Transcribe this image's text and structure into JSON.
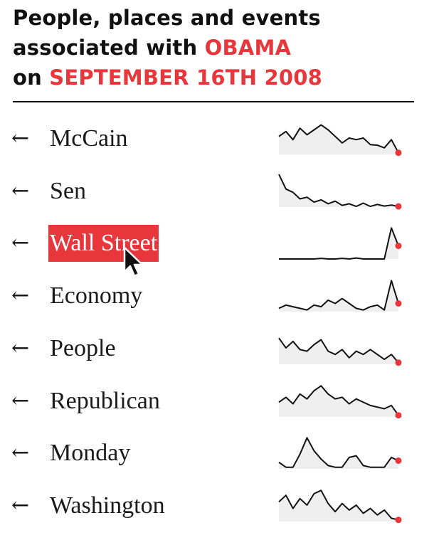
{
  "header": {
    "line1": "People, places and events",
    "line2_prefix": "associated with ",
    "subject": "OBAMA",
    "line3_prefix": "on ",
    "date": "SEPTEMBER 16TH 2008"
  },
  "arrow_glyph": "←",
  "colors": {
    "accent": "#e8373c",
    "text": "#111111",
    "sparkline_fill": "#efefef",
    "sparkline_line": "#111111"
  },
  "selected_term": "Wall Street",
  "cursor_icon": "arrow-pointer-icon",
  "chart_data": {
    "type": "line",
    "subtype": "sparklines",
    "title": "People, places and events associated with OBAMA on SEPTEMBER 16TH 2008",
    "y_scale": "independent per row",
    "last_point_marked": true,
    "series": [
      {
        "name": "McCain",
        "values": [
          0.55,
          0.7,
          0.45,
          0.8,
          0.6,
          0.75,
          0.9,
          0.75,
          0.55,
          0.35,
          0.5,
          0.45,
          0.5,
          0.3,
          0.28,
          0.2,
          0.45,
          0.05
        ]
      },
      {
        "name": "Sen",
        "values": [
          1.0,
          0.55,
          0.45,
          0.25,
          0.3,
          0.15,
          0.22,
          0.1,
          0.18,
          0.05,
          0.1,
          0.02,
          0.12,
          0.02,
          0.08,
          0.03,
          0.06,
          0.02
        ]
      },
      {
        "name": "Wall Street",
        "values": [
          0.0,
          0.0,
          0.0,
          0.0,
          0.0,
          0.0,
          0.02,
          0.0,
          0.0,
          0.02,
          0.0,
          0.03,
          0.0,
          0.0,
          0.0,
          0.0,
          0.95,
          0.4
        ]
      },
      {
        "name": "Economy",
        "values": [
          0.1,
          0.2,
          0.15,
          0.1,
          0.05,
          0.2,
          0.15,
          0.35,
          0.25,
          0.4,
          0.25,
          0.1,
          0.05,
          0.15,
          0.2,
          0.05,
          0.95,
          0.25
        ]
      },
      {
        "name": "People",
        "values": [
          0.8,
          0.5,
          0.7,
          0.45,
          0.4,
          0.6,
          0.75,
          0.4,
          0.3,
          0.45,
          0.2,
          0.4,
          0.3,
          0.45,
          0.3,
          0.15,
          0.3,
          0.05
        ]
      },
      {
        "name": "Republican",
        "values": [
          0.45,
          0.6,
          0.4,
          0.7,
          0.55,
          0.8,
          0.95,
          0.7,
          0.55,
          0.6,
          0.4,
          0.55,
          0.45,
          0.35,
          0.3,
          0.25,
          0.35,
          0.05
        ]
      },
      {
        "name": "Monday",
        "values": [
          0.2,
          0.05,
          0.05,
          0.45,
          0.95,
          0.55,
          0.3,
          0.1,
          0.05,
          0.05,
          0.35,
          0.4,
          0.1,
          0.05,
          0.05,
          0.05,
          0.35,
          0.25
        ]
      },
      {
        "name": "Washington",
        "values": [
          0.6,
          0.8,
          0.4,
          0.7,
          0.5,
          0.85,
          0.95,
          0.55,
          0.3,
          0.55,
          0.35,
          0.5,
          0.25,
          0.4,
          0.2,
          0.35,
          0.1,
          0.05
        ]
      }
    ]
  }
}
